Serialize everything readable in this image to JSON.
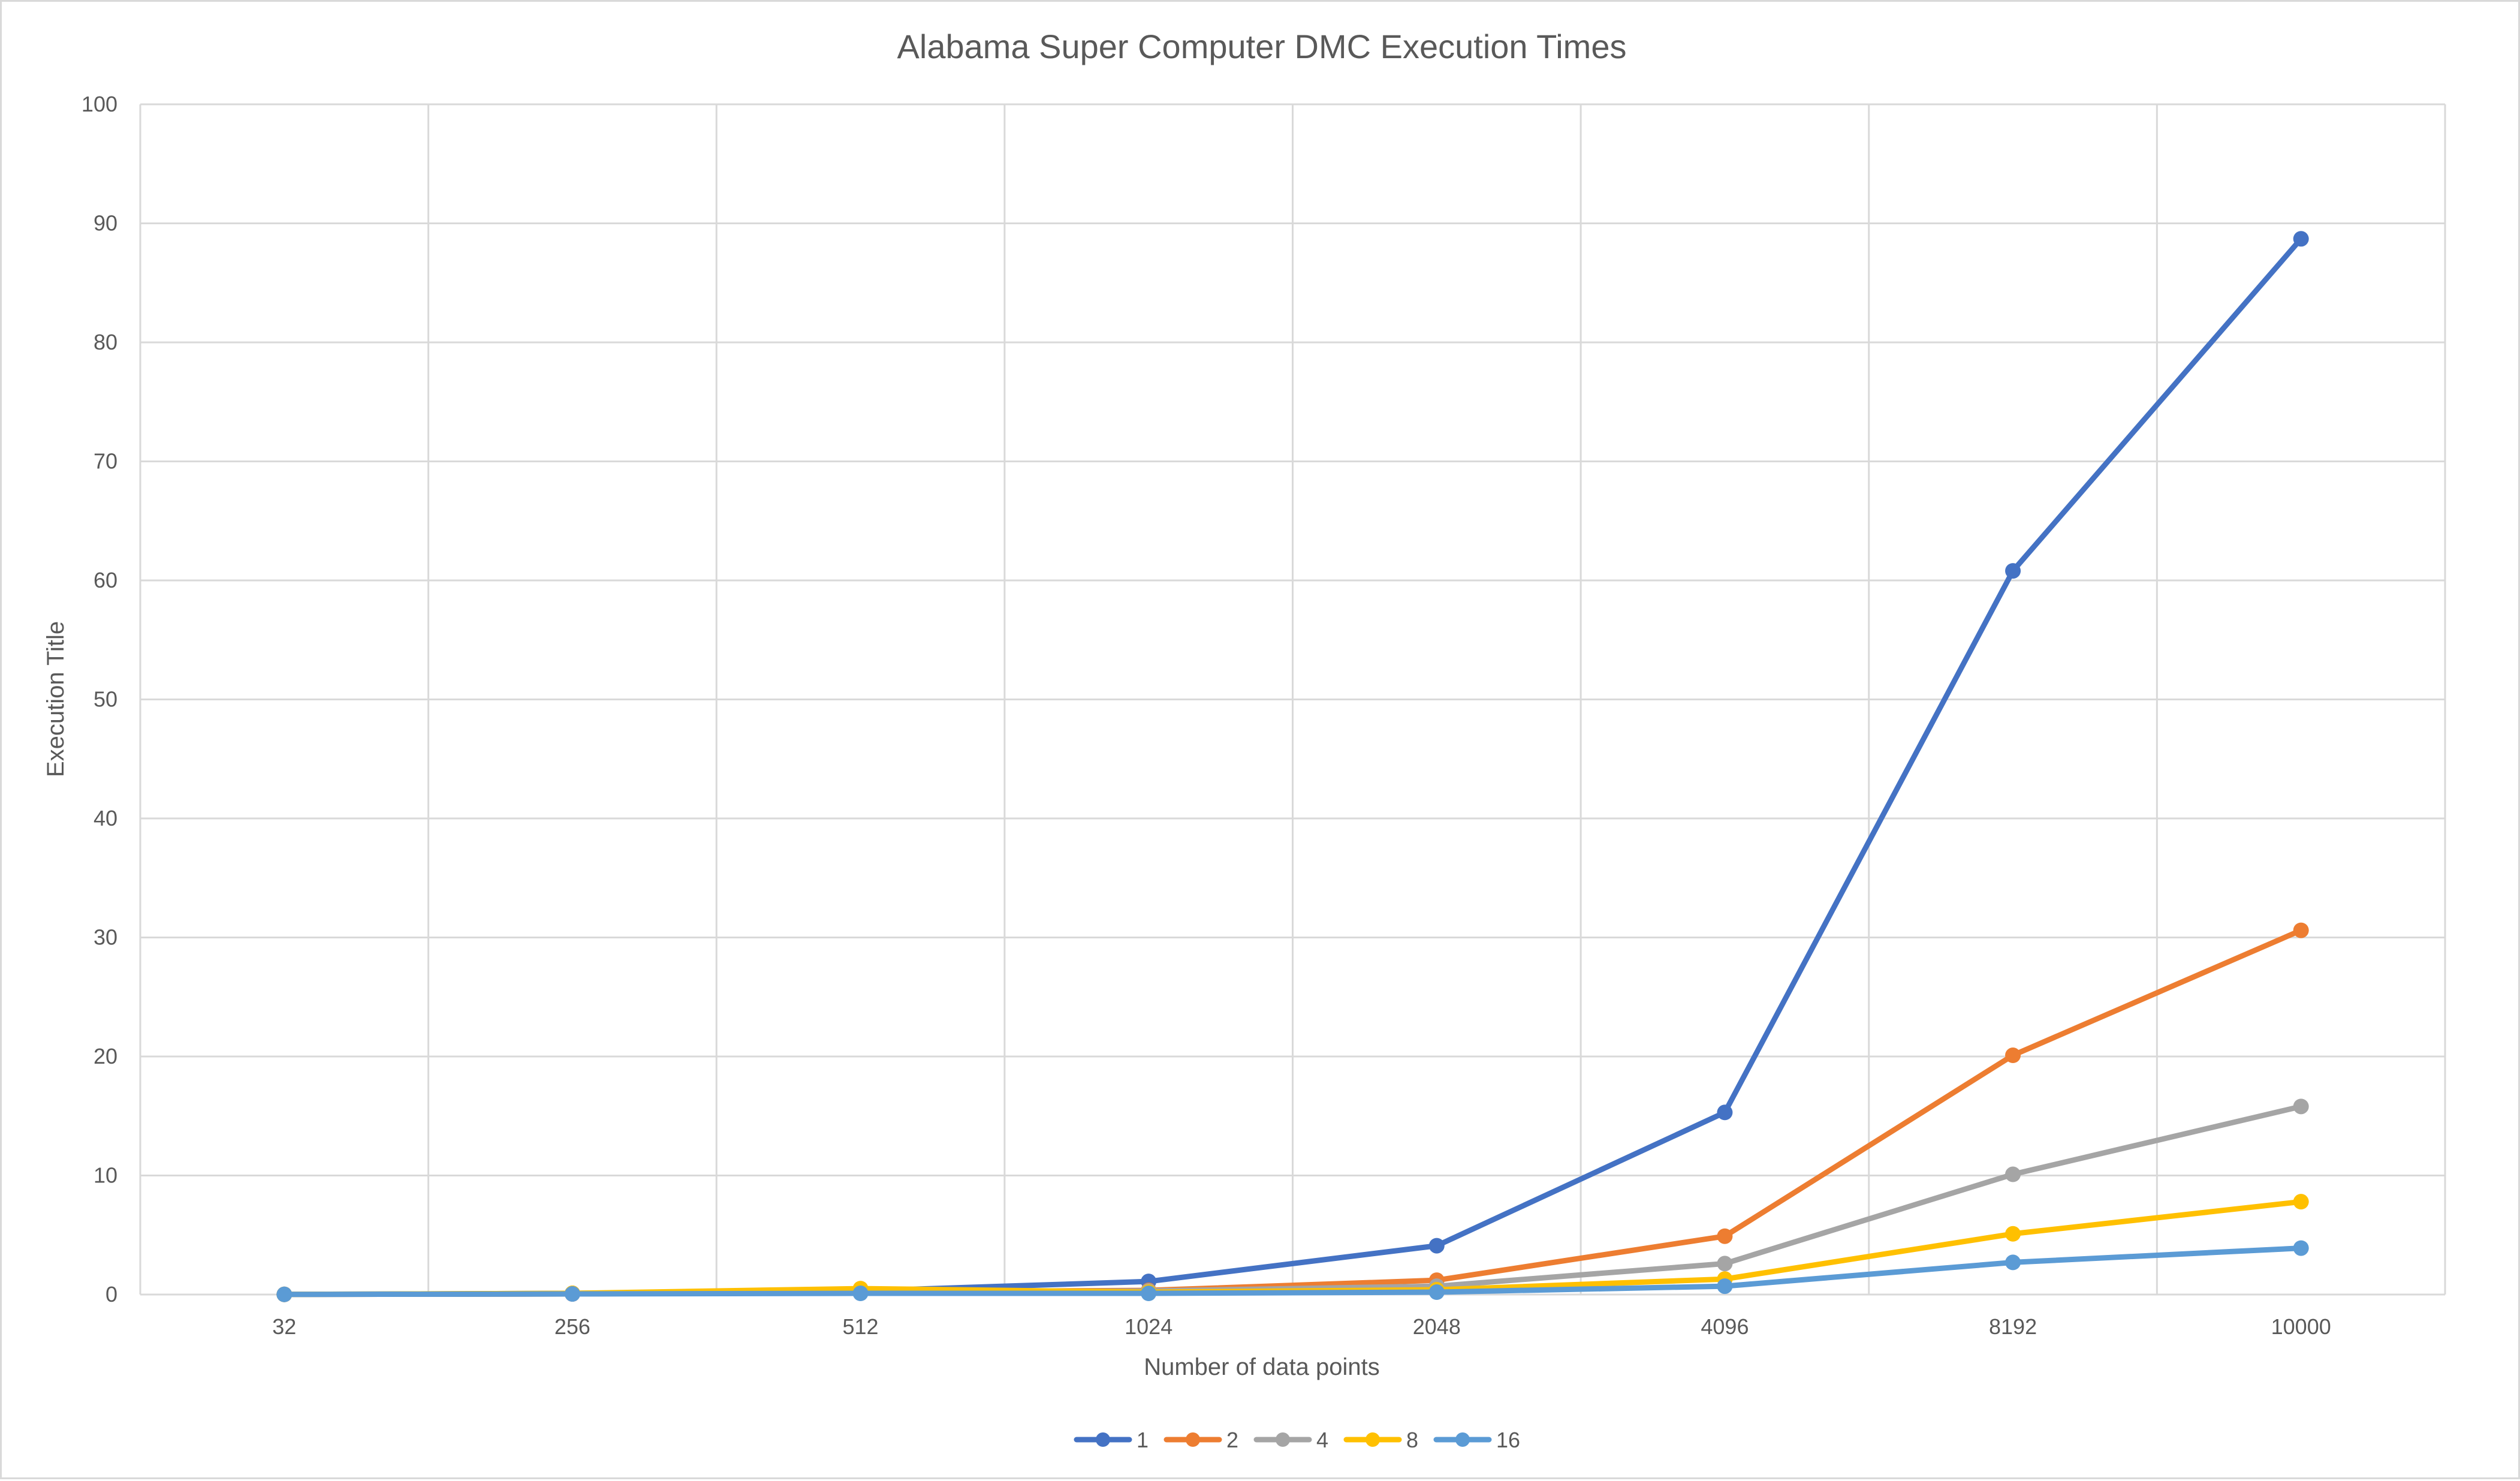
{
  "chart_data": {
    "type": "line",
    "title": "Alabama Super Computer DMC Execution Times",
    "xlabel": "Number of data points",
    "ylabel": "Execution Title",
    "categories": [
      "32",
      "256",
      "512",
      "1024",
      "2048",
      "4096",
      "8192",
      "10000"
    ],
    "ylim": [
      0,
      100
    ],
    "yticks": [
      0,
      10,
      20,
      30,
      40,
      50,
      60,
      70,
      80,
      90,
      100
    ],
    "grid": true,
    "legend_position": "bottom",
    "series": [
      {
        "name": "1",
        "color": "#4472C4",
        "values": [
          0.01,
          0.1,
          0.3,
          1.1,
          4.1,
          15.3,
          60.8,
          88.7
        ]
      },
      {
        "name": "2",
        "color": "#ED7D31",
        "values": [
          0.01,
          0.05,
          0.2,
          0.35,
          1.2,
          4.9,
          20.1,
          30.6
        ]
      },
      {
        "name": "4",
        "color": "#A5A5A5",
        "values": [
          0.01,
          0.05,
          0.2,
          0.3,
          0.7,
          2.6,
          10.1,
          15.8
        ]
      },
      {
        "name": "8",
        "color": "#FFC000",
        "values": [
          0.01,
          0.1,
          0.5,
          0.2,
          0.4,
          1.3,
          5.1,
          7.8
        ]
      },
      {
        "name": "16",
        "color": "#5B9BD5",
        "values": [
          0.01,
          0.05,
          0.1,
          0.1,
          0.2,
          0.7,
          2.7,
          3.9
        ]
      }
    ]
  }
}
